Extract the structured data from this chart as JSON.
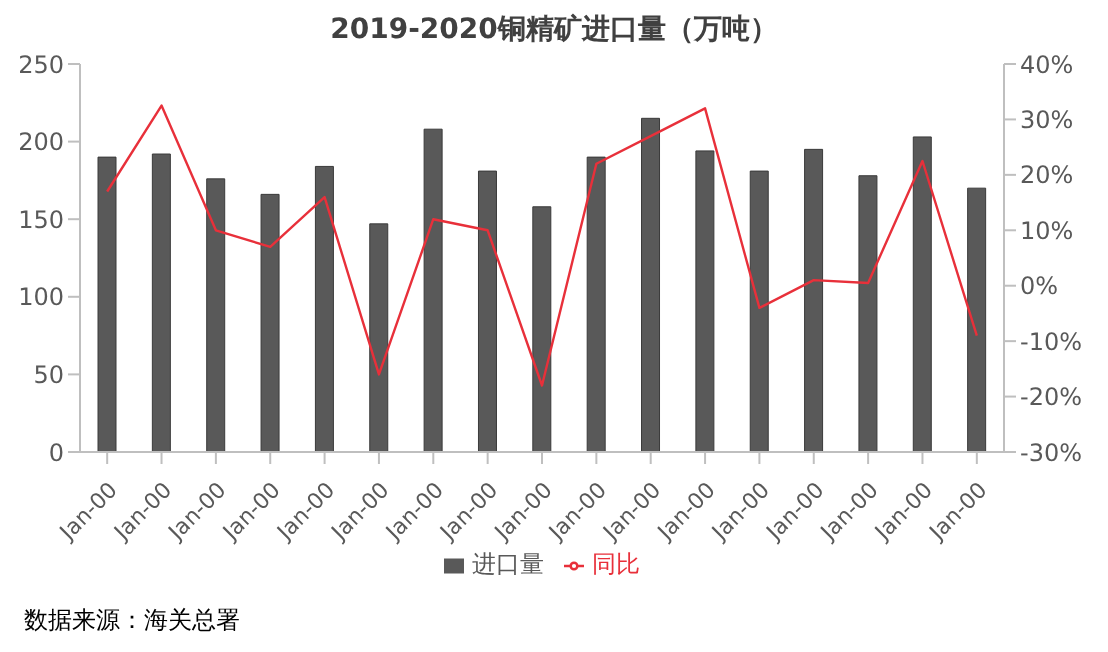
{
  "chart_data": {
    "type": "bar",
    "title": "2019-2020铜精矿进口量（万吨）",
    "categories": [
      "Jan-00",
      "Jan-00",
      "Jan-00",
      "Jan-00",
      "Jan-00",
      "Jan-00",
      "Jan-00",
      "Jan-00",
      "Jan-00",
      "Jan-00",
      "Jan-00",
      "Jan-00",
      "Jan-00",
      "Jan-00",
      "Jan-00",
      "Jan-00",
      "Jan-00"
    ],
    "series": [
      {
        "name": "进口量",
        "color": "#595959",
        "values": [
          190,
          192,
          176,
          166,
          184,
          147,
          208,
          181,
          158,
          190,
          215,
          194,
          181,
          195,
          178,
          203,
          170
        ]
      },
      {
        "name": "同比",
        "type": "line",
        "axis": "y2",
        "color": "#e8303a",
        "values": [
          17,
          32.5,
          10,
          7,
          16,
          -16,
          12,
          10,
          -18,
          22,
          27,
          32,
          -4,
          1,
          0.5,
          22.5,
          -9
        ]
      }
    ],
    "ylim": [
      0,
      250
    ],
    "yticks": [
      0,
      50,
      100,
      150,
      200,
      250
    ],
    "y2lim": [
      -30,
      40
    ],
    "y2ticks": [
      {
        "value": -30,
        "label": "-30%"
      },
      {
        "value": -20,
        "label": "-20%"
      },
      {
        "value": -10,
        "label": "-10%"
      },
      {
        "value": 0,
        "label": "0%"
      },
      {
        "value": 10,
        "label": "10%"
      },
      {
        "value": 20,
        "label": "20%"
      },
      {
        "value": 30,
        "label": "30%"
      },
      {
        "value": 40,
        "label": "40%"
      }
    ],
    "grid": false,
    "legend": "bottom",
    "marker": "none",
    "annotations": [
      "数据来源：海关总署"
    ]
  }
}
